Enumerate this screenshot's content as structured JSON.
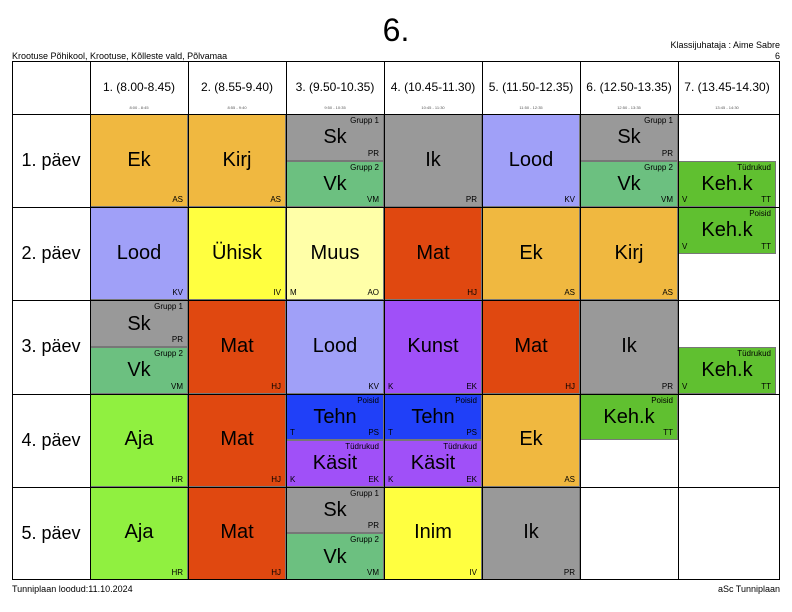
{
  "title": "6.",
  "school": "Krootuse Põhikool, Krootuse, Kõlleste vald, Põlvamaa",
  "teacher": "Klassijuhataja : Aime Sabre",
  "teacher_code": "6",
  "footer_left": "Tunniplaan loodud:11.10.2024",
  "footer_right": "aSc Tunniplaan",
  "periods": [
    {
      "label": "1. (8.00-8.45)",
      "sub": "8:00 - 8:45"
    },
    {
      "label": "2. (8.55-9.40)",
      "sub": "8:55 - 9:40"
    },
    {
      "label": "3. (9.50-10.35)",
      "sub": "9:50 - 10:35"
    },
    {
      "label": "4. (10.45-11.30)",
      "sub": "10:45 - 11:30"
    },
    {
      "label": "5. (11.50-12.35)",
      "sub": "11:50 - 12:35"
    },
    {
      "label": "6. (12.50-13.35)",
      "sub": "12:50 - 13:35"
    },
    {
      "label": "7. (13.45-14.30)",
      "sub": "13:45 - 14:30"
    }
  ],
  "days": [
    "1. päev",
    "2. päev",
    "3. päev",
    "4. päev",
    "5. päev"
  ],
  "colors": {
    "Ek": "#f0b840",
    "Kirj": "#f0b840",
    "Sk": "#999999",
    "Vk": "#6cc080",
    "Ik": "#999999",
    "Lood": "#a0a0f8",
    "Keh.k": "#60c030",
    "Ühisk": "#ffff40",
    "Muus": "#ffffa8",
    "Mat": "#e04810",
    "Kunst": "#a050f8",
    "Tehn": "#2040f8",
    "Käsit": "#a050f8",
    "Aja": "#90f040",
    "Inim": "#ffff40"
  },
  "lessons": [
    {
      "d": 0,
      "p": 0,
      "h": "full",
      "s": "Ek",
      "t": "AS"
    },
    {
      "d": 0,
      "p": 1,
      "h": "full",
      "s": "Kirj",
      "t": "AS"
    },
    {
      "d": 0,
      "p": 2,
      "h": "top",
      "s": "Sk",
      "t": "PR",
      "g": "Grupp 1"
    },
    {
      "d": 0,
      "p": 2,
      "h": "bottom",
      "s": "Vk",
      "t": "VM",
      "g": "Grupp 2"
    },
    {
      "d": 0,
      "p": 3,
      "h": "full",
      "s": "Ik",
      "t": "PR"
    },
    {
      "d": 0,
      "p": 4,
      "h": "full",
      "s": "Lood",
      "t": "KV"
    },
    {
      "d": 0,
      "p": 5,
      "h": "top",
      "s": "Sk",
      "t": "PR",
      "g": "Grupp 1"
    },
    {
      "d": 0,
      "p": 5,
      "h": "bottom",
      "s": "Vk",
      "t": "VM",
      "g": "Grupp 2"
    },
    {
      "d": 0,
      "p": 6,
      "h": "bottom",
      "s": "Keh.k",
      "t": "TT",
      "g": "Tüdrukud",
      "r": "V"
    },
    {
      "d": 1,
      "p": 0,
      "h": "full",
      "s": "Lood",
      "t": "KV"
    },
    {
      "d": 1,
      "p": 1,
      "h": "full",
      "s": "Ühisk",
      "t": "IV"
    },
    {
      "d": 1,
      "p": 2,
      "h": "full",
      "s": "Muus",
      "t": "AO",
      "r": "M"
    },
    {
      "d": 1,
      "p": 3,
      "h": "full",
      "s": "Mat",
      "t": "HJ"
    },
    {
      "d": 1,
      "p": 4,
      "h": "full",
      "s": "Ek",
      "t": "AS"
    },
    {
      "d": 1,
      "p": 5,
      "h": "full",
      "s": "Kirj",
      "t": "AS"
    },
    {
      "d": 1,
      "p": 6,
      "h": "top",
      "s": "Keh.k",
      "t": "TT",
      "g": "Poisid",
      "r": "V"
    },
    {
      "d": 2,
      "p": 0,
      "h": "top",
      "s": "Sk",
      "t": "PR",
      "g": "Grupp 1"
    },
    {
      "d": 2,
      "p": 0,
      "h": "bottom",
      "s": "Vk",
      "t": "VM",
      "g": "Grupp 2"
    },
    {
      "d": 2,
      "p": 1,
      "h": "full",
      "s": "Mat",
      "t": "HJ"
    },
    {
      "d": 2,
      "p": 2,
      "h": "full",
      "s": "Lood",
      "t": "KV"
    },
    {
      "d": 2,
      "p": 3,
      "h": "full",
      "s": "Kunst",
      "t": "EK",
      "r": "K"
    },
    {
      "d": 2,
      "p": 4,
      "h": "full",
      "s": "Mat",
      "t": "HJ"
    },
    {
      "d": 2,
      "p": 5,
      "h": "full",
      "s": "Ik",
      "t": "PR"
    },
    {
      "d": 2,
      "p": 6,
      "h": "bottom",
      "s": "Keh.k",
      "t": "TT",
      "g": "Tüdrukud",
      "r": "V"
    },
    {
      "d": 3,
      "p": 0,
      "h": "full",
      "s": "Aja",
      "t": "HR"
    },
    {
      "d": 3,
      "p": 1,
      "h": "full",
      "s": "Mat",
      "t": "HJ"
    },
    {
      "d": 3,
      "p": 2,
      "h": "top",
      "s": "Tehn",
      "t": "PS",
      "g": "Poisid",
      "r": "T"
    },
    {
      "d": 3,
      "p": 2,
      "h": "bottom",
      "s": "Käsit",
      "t": "EK",
      "g": "Tüdrukud",
      "r": "K"
    },
    {
      "d": 3,
      "p": 3,
      "h": "top",
      "s": "Tehn",
      "t": "PS",
      "g": "Poisid",
      "r": "T"
    },
    {
      "d": 3,
      "p": 3,
      "h": "bottom",
      "s": "Käsit",
      "t": "EK",
      "g": "Tüdrukud",
      "r": "K"
    },
    {
      "d": 3,
      "p": 4,
      "h": "full",
      "s": "Ek",
      "t": "AS"
    },
    {
      "d": 3,
      "p": 5,
      "h": "top",
      "s": "Keh.k",
      "t": "TT",
      "g": "Poisid"
    },
    {
      "d": 4,
      "p": 0,
      "h": "full",
      "s": "Aja",
      "t": "HR"
    },
    {
      "d": 4,
      "p": 1,
      "h": "full",
      "s": "Mat",
      "t": "HJ"
    },
    {
      "d": 4,
      "p": 2,
      "h": "top",
      "s": "Sk",
      "t": "PR",
      "g": "Grupp 1"
    },
    {
      "d": 4,
      "p": 2,
      "h": "bottom",
      "s": "Vk",
      "t": "VM",
      "g": "Grupp 2"
    },
    {
      "d": 4,
      "p": 3,
      "h": "full",
      "s": "Inim",
      "t": "IV"
    },
    {
      "d": 4,
      "p": 4,
      "h": "full",
      "s": "Ik",
      "t": "PR"
    }
  ]
}
